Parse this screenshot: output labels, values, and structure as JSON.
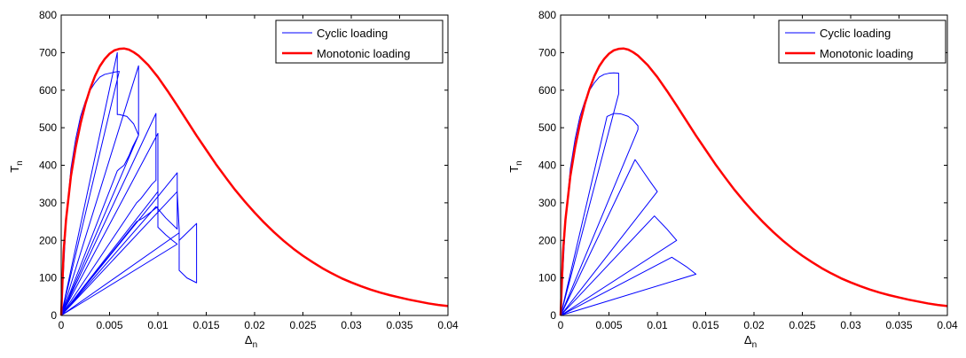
{
  "chart_data": [
    {
      "type": "line",
      "xlabel": "Δ",
      "xlabel_sub": "n",
      "ylabel": "T",
      "ylabel_sub": "n",
      "xlim": [
        0,
        0.04
      ],
      "ylim": [
        0,
        800
      ],
      "xticks": [
        "0",
        "0.005",
        "0.01",
        "0.015",
        "0.02",
        "0.025",
        "0.03",
        "0.035",
        "0.04"
      ],
      "yticks": [
        "0",
        "100",
        "200",
        "300",
        "400",
        "500",
        "600",
        "700",
        "800"
      ],
      "grid": false,
      "legend": {
        "position": "top-right",
        "entries": [
          "Cyclic loading",
          "Monotonic loading"
        ]
      },
      "series": [
        {
          "name": "Cyclic loading",
          "color": "#0000ff",
          "x": [
            0,
            0.0005,
            0.001,
            0.0015,
            0.002,
            0.0025,
            0.003,
            0.0035,
            0.004,
            0.0045,
            0.005,
            0.0055,
            0.006,
            0,
            0.0058,
            0.0058,
            0.006,
            0.0068,
            0.0075,
            0.008,
            0,
            0.008,
            0.008,
            0.0074,
            0.007,
            0.0065,
            0.006,
            0.0058,
            0,
            0.0098,
            0.0098,
            0.0094,
            0.0088,
            0.0082,
            0.0078,
            0,
            0.01,
            0.01,
            0.0095,
            0.0085,
            0.0078,
            0,
            0.01,
            0.01,
            0.0108,
            0.0115,
            0.012,
            0,
            0.012,
            0.012,
            0.0108,
            0.0098,
            0,
            0.012,
            0.0122,
            0.0122,
            0.013,
            0.014,
            0.014,
            0.0122,
            0.0122,
            0
          ],
          "y": [
            0,
            250,
            390,
            470,
            530,
            570,
            600,
            620,
            635,
            642,
            645,
            648,
            650,
            0,
            700,
            535,
            535,
            530,
            510,
            480,
            0,
            665,
            480,
            450,
            425,
            400,
            390,
            385,
            0,
            538,
            360,
            350,
            330,
            310,
            300,
            0,
            485,
            290,
            280,
            260,
            250,
            0,
            330,
            235,
            215,
            200,
            190,
            0,
            380,
            230,
            260,
            290,
            0,
            330,
            230,
            120,
            100,
            87,
            245,
            200,
            220,
            0
          ]
        },
        {
          "name": "Monotonic loading",
          "color": "#ff0000",
          "x": [
            0,
            0.00025,
            0.0005,
            0.001,
            0.0015,
            0.002,
            0.0025,
            0.003,
            0.0035,
            0.004,
            0.0045,
            0.005,
            0.0055,
            0.006,
            0.0065,
            0.007,
            0.0075,
            0.008,
            0.009,
            0.01,
            0.011,
            0.012,
            0.013,
            0.014,
            0.015,
            0.016,
            0.017,
            0.018,
            0.019,
            0.02,
            0.021,
            0.022,
            0.023,
            0.024,
            0.025,
            0.026,
            0.027,
            0.028,
            0.029,
            0.03,
            0.031,
            0.032,
            0.033,
            0.034,
            0.035,
            0.036,
            0.037,
            0.038,
            0.039,
            0.04
          ],
          "y": [
            0,
            170,
            255,
            370,
            448,
            511,
            563,
            604,
            638,
            664,
            683,
            697,
            706,
            710,
            711,
            708,
            701,
            692,
            667,
            635,
            598,
            559,
            519,
            479,
            441,
            403,
            368,
            334,
            303,
            274,
            247,
            222,
            199,
            178,
            159,
            142,
            126,
            112,
            99,
            88,
            78,
            69,
            61,
            54,
            48,
            42,
            37,
            32,
            28,
            25
          ]
        }
      ]
    },
    {
      "type": "line",
      "xlabel": "Δ",
      "xlabel_sub": "n",
      "ylabel": "T",
      "ylabel_sub": "n",
      "xlim": [
        0,
        0.04
      ],
      "ylim": [
        0,
        800
      ],
      "xticks": [
        "0",
        "0.005",
        "0.01",
        "0.015",
        "0.02",
        "0.025",
        "0.03",
        "0.035",
        "0.04"
      ],
      "yticks": [
        "0",
        "100",
        "200",
        "300",
        "400",
        "500",
        "600",
        "700",
        "800"
      ],
      "grid": false,
      "legend": {
        "position": "top-right",
        "entries": [
          "Cyclic loading",
          "Monotonic loading"
        ]
      },
      "series": [
        {
          "name": "Cyclic loading",
          "color": "#0000ff",
          "x": [
            0,
            0.0005,
            0.001,
            0.0015,
            0.002,
            0.0025,
            0.003,
            0.0035,
            0.004,
            0.0045,
            0.005,
            0.0055,
            0.006,
            0.006,
            0,
            0.0048,
            0.0055,
            0.0062,
            0.007,
            0.0075,
            0.008,
            0.008,
            0,
            0.0077,
            0.0085,
            0.0093,
            0.01,
            0,
            0.0097,
            0.011,
            0.012,
            0,
            0.0115,
            0.013,
            0.014,
            0
          ],
          "y": [
            0,
            250,
            390,
            470,
            530,
            570,
            600,
            620,
            635,
            642,
            645,
            646,
            645,
            590,
            0,
            530,
            538,
            537,
            530,
            520,
            505,
            495,
            0,
            415,
            385,
            355,
            330,
            0,
            265,
            230,
            200,
            0,
            155,
            130,
            110,
            0
          ]
        },
        {
          "name": "Monotonic loading",
          "color": "#ff0000",
          "x": [
            0,
            0.00025,
            0.0005,
            0.001,
            0.0015,
            0.002,
            0.0025,
            0.003,
            0.0035,
            0.004,
            0.0045,
            0.005,
            0.0055,
            0.006,
            0.0065,
            0.007,
            0.0075,
            0.008,
            0.009,
            0.01,
            0.011,
            0.012,
            0.013,
            0.014,
            0.015,
            0.016,
            0.017,
            0.018,
            0.019,
            0.02,
            0.021,
            0.022,
            0.023,
            0.024,
            0.025,
            0.026,
            0.027,
            0.028,
            0.029,
            0.03,
            0.031,
            0.032,
            0.033,
            0.034,
            0.035,
            0.036,
            0.037,
            0.038,
            0.039,
            0.04
          ],
          "y": [
            0,
            170,
            255,
            370,
            448,
            511,
            563,
            604,
            638,
            664,
            683,
            697,
            706,
            710,
            711,
            708,
            701,
            692,
            667,
            635,
            598,
            559,
            519,
            479,
            441,
            403,
            368,
            334,
            303,
            274,
            247,
            222,
            199,
            178,
            159,
            142,
            126,
            112,
            99,
            88,
            78,
            69,
            61,
            54,
            48,
            42,
            37,
            32,
            28,
            25
          ]
        }
      ]
    }
  ]
}
